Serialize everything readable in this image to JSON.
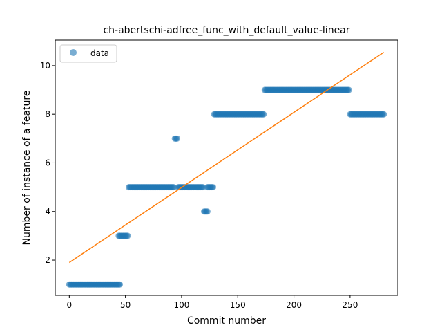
{
  "chart_data": {
    "type": "scatter",
    "title": "ch-abertschi-adfree_func_with_default_value-linear",
    "xlabel": "Commit number",
    "ylabel": "Number of instance of a feature",
    "xlim": [
      -12.5,
      292.5
    ],
    "ylim": [
      0.55,
      11.05
    ],
    "xticks": [
      0,
      50,
      100,
      150,
      200,
      250
    ],
    "yticks": [
      2,
      4,
      6,
      8,
      10
    ],
    "legend": {
      "position": "top-left",
      "entries": [
        "data"
      ]
    },
    "colors": {
      "points": "#1f77b4",
      "fit_line": "#ff7f0e"
    },
    "series": [
      {
        "name": "data",
        "kind": "scatter",
        "segments": [
          {
            "x_start": 0,
            "x_end": 45,
            "y": 1
          },
          {
            "x_start": 44,
            "x_end": 52,
            "y": 3
          },
          {
            "x_start": 53,
            "x_end": 93,
            "y": 5
          },
          {
            "x_start": 94,
            "x_end": 96,
            "y": 7
          },
          {
            "x_start": 97,
            "x_end": 119,
            "y": 5
          },
          {
            "x_start": 120,
            "x_end": 123,
            "y": 4
          },
          {
            "x_start": 123,
            "x_end": 128,
            "y": 5
          },
          {
            "x_start": 129,
            "x_end": 173,
            "y": 8
          },
          {
            "x_start": 174,
            "x_end": 249,
            "y": 9
          },
          {
            "x_start": 250,
            "x_end": 280,
            "y": 8
          }
        ]
      },
      {
        "kind": "line",
        "points": [
          {
            "x": 0,
            "y": 1.9
          },
          {
            "x": 280,
            "y": 10.55
          }
        ]
      }
    ]
  }
}
